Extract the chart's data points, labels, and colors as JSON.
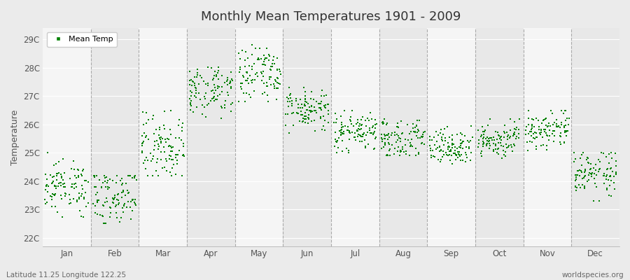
{
  "title": "Monthly Mean Temperatures 1901 - 2009",
  "ylabel": "Temperature",
  "footnote_left": "Latitude 11.25 Longitude 122.25",
  "footnote_right": "worldspecies.org",
  "legend_label": "Mean Temp",
  "marker_color": "#008000",
  "ytick_labels": [
    "22C",
    "23C",
    "24C",
    "25C",
    "26C",
    "27C",
    "28C",
    "29C"
  ],
  "ytick_values": [
    22,
    23,
    24,
    25,
    26,
    27,
    28,
    29
  ],
  "ylim": [
    21.7,
    29.4
  ],
  "months": [
    "Jan",
    "Feb",
    "Mar",
    "Apr",
    "May",
    "Jun",
    "Jul",
    "Aug",
    "Sep",
    "Oct",
    "Nov",
    "Dec"
  ],
  "background_color": "#ebebeb",
  "plot_bg_stripes": [
    "#f5f5f5",
    "#e8e8e8"
  ],
  "grid_color": "#ffffff",
  "month_means": [
    23.8,
    23.5,
    25.2,
    27.2,
    27.8,
    26.5,
    25.8,
    25.5,
    25.2,
    25.5,
    25.8,
    24.2
  ],
  "month_stds": [
    0.45,
    0.55,
    0.55,
    0.45,
    0.45,
    0.35,
    0.35,
    0.35,
    0.3,
    0.35,
    0.35,
    0.4
  ],
  "month_mins": [
    22.2,
    22.5,
    24.2,
    26.2,
    26.8,
    25.7,
    25.0,
    24.9,
    24.5,
    24.8,
    25.0,
    23.3
  ],
  "month_maxs": [
    25.0,
    24.2,
    26.5,
    28.3,
    29.3,
    27.3,
    26.5,
    26.2,
    26.0,
    26.2,
    26.5,
    25.0
  ],
  "n_years": 109,
  "seed": 12345
}
